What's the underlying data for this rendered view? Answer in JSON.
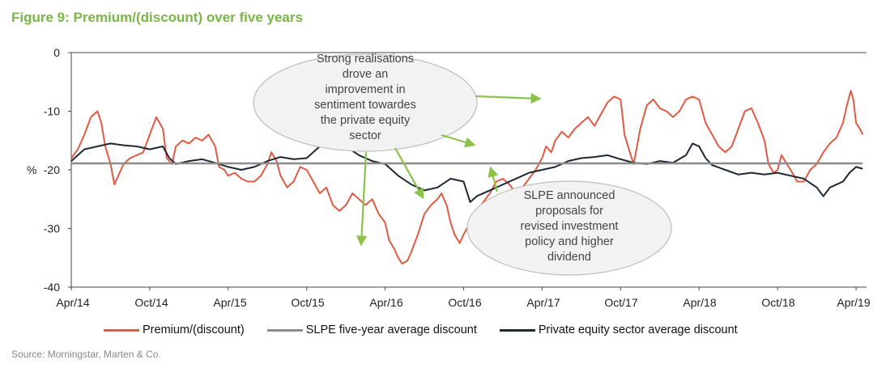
{
  "figure": {
    "title": "Figure 9: Premium/(discount) over five years"
  },
  "source": "Source: Morningstar, Marten & Co.",
  "colors": {
    "title": "#7ab648",
    "premium": "#e05a44",
    "average": "#8c8c8c",
    "sector": "#1e2832",
    "arrow": "#8bc34a"
  },
  "chart_data": {
    "type": "line",
    "title": "Premium/(discount) over five years",
    "ylabel": "%",
    "xlabel": "",
    "ylim": [
      -40,
      0
    ],
    "yticks": [
      0,
      -10,
      -20,
      -30,
      -40
    ],
    "x_tick_labels": [
      "Apr/14",
      "Oct/14",
      "Apr/15",
      "Oct/15",
      "Apr/16",
      "Oct/16",
      "Apr/17",
      "Oct/17",
      "Apr/18",
      "Oct/18",
      "Apr/19"
    ],
    "x_range_months": [
      0,
      60
    ],
    "series": [
      {
        "name": "Premium/(discount)",
        "color": "#e05a44",
        "points": [
          [
            0,
            -18
          ],
          [
            0.5,
            -16.5
          ],
          [
            1,
            -14
          ],
          [
            1.5,
            -11
          ],
          [
            2,
            -10
          ],
          [
            2.3,
            -12
          ],
          [
            2.6,
            -16
          ],
          [
            3,
            -19
          ],
          [
            3.3,
            -22.5
          ],
          [
            3.6,
            -21
          ],
          [
            4,
            -19
          ],
          [
            4.5,
            -18
          ],
          [
            5,
            -17.5
          ],
          [
            5.5,
            -17
          ],
          [
            6,
            -14
          ],
          [
            6.5,
            -11
          ],
          [
            7,
            -13
          ],
          [
            7.3,
            -18
          ],
          [
            7.7,
            -19
          ],
          [
            8,
            -16
          ],
          [
            8.5,
            -15
          ],
          [
            9,
            -15.5
          ],
          [
            9.5,
            -14.5
          ],
          [
            10,
            -15
          ],
          [
            10.5,
            -14
          ],
          [
            11,
            -16
          ],
          [
            11.3,
            -19.5
          ],
          [
            11.7,
            -20
          ],
          [
            12,
            -21
          ],
          [
            12.5,
            -20.5
          ],
          [
            13,
            -21.5
          ],
          [
            13.5,
            -22
          ],
          [
            14,
            -22
          ],
          [
            14.5,
            -21
          ],
          [
            15,
            -19
          ],
          [
            15.3,
            -17
          ],
          [
            15.7,
            -18.5
          ],
          [
            16,
            -21
          ],
          [
            16.5,
            -23
          ],
          [
            17,
            -22
          ],
          [
            17.5,
            -19.5
          ],
          [
            18,
            -20
          ],
          [
            18.5,
            -22
          ],
          [
            19,
            -24
          ],
          [
            19.5,
            -23
          ],
          [
            20,
            -26
          ],
          [
            20.5,
            -27
          ],
          [
            21,
            -26
          ],
          [
            21.5,
            -24
          ],
          [
            22,
            -25
          ],
          [
            22.5,
            -26
          ],
          [
            23,
            -25
          ],
          [
            23.5,
            -27.5
          ],
          [
            24,
            -29
          ],
          [
            24.3,
            -32
          ],
          [
            24.7,
            -33.5
          ],
          [
            25,
            -35
          ],
          [
            25.3,
            -36
          ],
          [
            25.7,
            -35.5
          ],
          [
            26,
            -34
          ],
          [
            26.5,
            -31
          ],
          [
            27,
            -27.5
          ],
          [
            27.5,
            -26
          ],
          [
            28,
            -25
          ],
          [
            28.3,
            -24
          ],
          [
            28.7,
            -26
          ],
          [
            29,
            -29
          ],
          [
            29.3,
            -31
          ],
          [
            29.7,
            -32.5
          ],
          [
            30,
            -31
          ],
          [
            30.5,
            -29
          ],
          [
            31,
            -27
          ],
          [
            31.5,
            -25.5
          ],
          [
            32,
            -24
          ],
          [
            32.5,
            -22
          ],
          [
            33,
            -21.5
          ],
          [
            33.5,
            -22.5
          ],
          [
            34,
            -24
          ],
          [
            34.5,
            -23
          ],
          [
            35,
            -21.5
          ],
          [
            35.5,
            -20
          ],
          [
            36,
            -18
          ],
          [
            36.3,
            -16
          ],
          [
            36.7,
            -17
          ],
          [
            37,
            -15
          ],
          [
            37.5,
            -13.5
          ],
          [
            38,
            -14.5
          ],
          [
            38.5,
            -13
          ],
          [
            39,
            -12
          ],
          [
            39.5,
            -11
          ],
          [
            40,
            -12.5
          ],
          [
            40.5,
            -10.5
          ],
          [
            41,
            -8.5
          ],
          [
            41.5,
            -7.5
          ],
          [
            42,
            -8
          ],
          [
            42.3,
            -14
          ],
          [
            42.7,
            -17
          ],
          [
            43,
            -19
          ],
          [
            43.5,
            -13
          ],
          [
            44,
            -9
          ],
          [
            44.5,
            -8
          ],
          [
            45,
            -9.5
          ],
          [
            45.5,
            -10
          ],
          [
            46,
            -11
          ],
          [
            46.5,
            -10
          ],
          [
            47,
            -8
          ],
          [
            47.5,
            -7.5
          ],
          [
            48,
            -8
          ],
          [
            48.5,
            -12
          ],
          [
            49,
            -14
          ],
          [
            49.5,
            -16
          ],
          [
            50,
            -17
          ],
          [
            50.5,
            -16
          ],
          [
            51,
            -13
          ],
          [
            51.5,
            -10
          ],
          [
            52,
            -9.5
          ],
          [
            52.5,
            -12
          ],
          [
            53,
            -15
          ],
          [
            53.3,
            -19
          ],
          [
            53.7,
            -20.5
          ],
          [
            54,
            -20
          ],
          [
            54.3,
            -17.5
          ],
          [
            54.7,
            -19
          ],
          [
            55,
            -20
          ],
          [
            55.5,
            -22
          ],
          [
            56,
            -22
          ],
          [
            56.5,
            -20
          ],
          [
            57,
            -19
          ],
          [
            57.5,
            -17
          ],
          [
            58,
            -15.5
          ],
          [
            58.5,
            -14.5
          ],
          [
            59,
            -12
          ],
          [
            59.3,
            -9
          ],
          [
            59.6,
            -6.5
          ],
          [
            59.8,
            -8
          ],
          [
            60,
            -12
          ],
          [
            60.3,
            -13
          ],
          [
            60.5,
            -14
          ]
        ]
      },
      {
        "name": "SLPE five-year average discount",
        "color": "#8c8c8c",
        "points": [
          [
            0,
            -18.9
          ],
          [
            60.5,
            -18.9
          ]
        ]
      },
      {
        "name": "Private equity sector average discount",
        "color": "#1e2832",
        "points": [
          [
            0,
            -18.5
          ],
          [
            1,
            -16.5
          ],
          [
            2,
            -16
          ],
          [
            3,
            -15.5
          ],
          [
            4,
            -15.8
          ],
          [
            5,
            -16
          ],
          [
            6,
            -16.5
          ],
          [
            7,
            -16
          ],
          [
            7.5,
            -18
          ],
          [
            8,
            -19
          ],
          [
            9,
            -18.5
          ],
          [
            10,
            -18.2
          ],
          [
            11,
            -18.8
          ],
          [
            12,
            -19.5
          ],
          [
            13,
            -20
          ],
          [
            14,
            -19.5
          ],
          [
            15,
            -18.5
          ],
          [
            16,
            -17.8
          ],
          [
            17,
            -18.2
          ],
          [
            18,
            -18
          ],
          [
            19,
            -16
          ],
          [
            20,
            -15.5
          ],
          [
            21,
            -16
          ],
          [
            22,
            -17.5
          ],
          [
            23,
            -18.5
          ],
          [
            24,
            -19
          ],
          [
            25,
            -21
          ],
          [
            26,
            -22.5
          ],
          [
            27,
            -23.5
          ],
          [
            28,
            -23
          ],
          [
            29,
            -21.5
          ],
          [
            30,
            -22
          ],
          [
            30.5,
            -25.5
          ],
          [
            31,
            -24.5
          ],
          [
            32,
            -23.5
          ],
          [
            33,
            -22.5
          ],
          [
            34,
            -21.5
          ],
          [
            35,
            -20.5
          ],
          [
            36,
            -20
          ],
          [
            37,
            -19.5
          ],
          [
            38,
            -18.5
          ],
          [
            39,
            -18
          ],
          [
            40,
            -17.8
          ],
          [
            41,
            -17.5
          ],
          [
            42,
            -18.2
          ],
          [
            43,
            -18.8
          ],
          [
            44,
            -19
          ],
          [
            45,
            -18.5
          ],
          [
            46,
            -18.8
          ],
          [
            47,
            -17.5
          ],
          [
            47.5,
            -15.5
          ],
          [
            48,
            -16
          ],
          [
            48.5,
            -18
          ],
          [
            49,
            -19.2
          ],
          [
            50,
            -20
          ],
          [
            51,
            -20.8
          ],
          [
            52,
            -20.5
          ],
          [
            53,
            -20.8
          ],
          [
            54,
            -20.5
          ],
          [
            55,
            -21
          ],
          [
            56,
            -21.5
          ],
          [
            57,
            -23
          ],
          [
            57.5,
            -24.5
          ],
          [
            58,
            -23
          ],
          [
            59,
            -22
          ],
          [
            59.5,
            -20.5
          ],
          [
            60,
            -19.5
          ],
          [
            60.5,
            -19.8
          ]
        ]
      }
    ]
  },
  "annotations": [
    {
      "text": "Strong realisations drove an improvement in sentiment towardes the private equity sector",
      "lines": [
        "Strong realisations",
        "drove an",
        "improvement in",
        "sentiment towardes",
        "the private equity",
        "sector"
      ]
    },
    {
      "text": "SLPE announced proposals for revised investment policy and higher dividend",
      "lines": [
        "SLPE announced",
        "proposals for",
        "revised investment",
        "policy and higher",
        "dividend"
      ]
    }
  ]
}
